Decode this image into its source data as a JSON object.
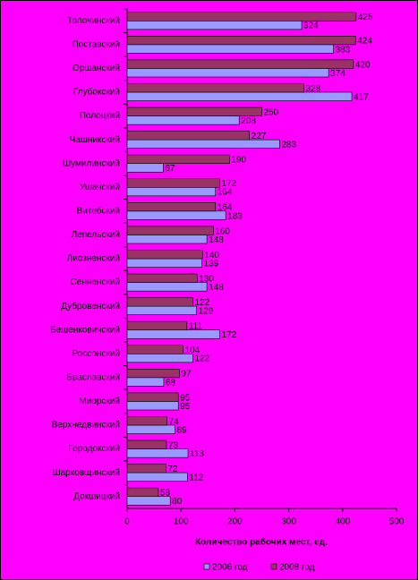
{
  "chart_data": {
    "type": "hbar",
    "x_label": "Количество рабочих мест, ед.",
    "categories": [
      "Толочинский",
      "Поставский",
      "Оршанский",
      "Глубокский",
      "Полоцкий",
      "Чашникский",
      "Шумилинский",
      "Ушачский",
      "Витебский",
      "Лепельский",
      "Лиозненский",
      "Сенненский",
      "Дубровенский",
      "Бешенковичский",
      "Россонский",
      "Браславский",
      "Миорский",
      "Верхнедвинский",
      "Городокский",
      "Шарковщинский",
      "Докшицкий"
    ],
    "series": [
      {
        "name": "2006 год",
        "color": "#9999ff",
        "values": [
          324,
          383,
          374,
          417,
          208,
          283,
          67,
          164,
          183,
          148,
          139,
          148,
          129,
          172,
          122,
          68,
          95,
          89,
          113,
          112,
          80
        ]
      },
      {
        "name": "2008 год",
        "color": "#993366",
        "values": [
          425,
          424,
          420,
          328,
          250,
          227,
          190,
          172,
          164,
          160,
          140,
          130,
          122,
          111,
          104,
          97,
          95,
          74,
          73,
          72,
          58
        ]
      }
    ],
    "xlim": [
      0,
      500
    ],
    "xticks": [
      0,
      100,
      200,
      300,
      400,
      500
    ],
    "legend": "bottom"
  }
}
